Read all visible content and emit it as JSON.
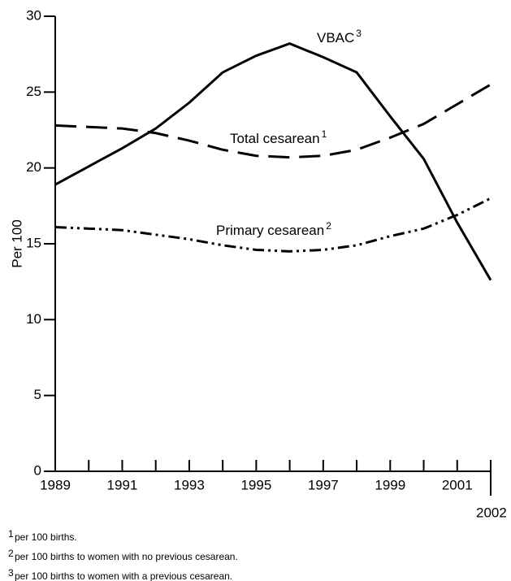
{
  "chart_data": {
    "type": "line",
    "y_label": "Per 100",
    "x": [
      1989,
      1990,
      1991,
      1992,
      1993,
      1994,
      1995,
      1996,
      1997,
      1998,
      1999,
      2000,
      2001,
      2002
    ],
    "xlim": [
      1989,
      2002
    ],
    "xticks": [
      1989,
      1991,
      1993,
      1995,
      1997,
      1999,
      2001,
      2002
    ],
    "xminorticks": [
      1990,
      1992,
      1994,
      1996,
      1998,
      2000
    ],
    "ylim": [
      0,
      30
    ],
    "yticks": [
      0,
      5,
      10,
      15,
      20,
      25,
      30
    ],
    "color": "#000000",
    "series": [
      {
        "name": "VBAC",
        "footnote": "3",
        "dash": "solid",
        "values": [
          18.9,
          20.1,
          21.3,
          22.6,
          24.3,
          26.3,
          27.4,
          28.2,
          27.3,
          26.3,
          23.4,
          20.6,
          16.4,
          12.6
        ]
      },
      {
        "name": "Total cesarean",
        "footnote": "1",
        "dash": "dashed",
        "values": [
          22.8,
          22.7,
          22.6,
          22.3,
          21.8,
          21.2,
          20.8,
          20.7,
          20.8,
          21.2,
          22.0,
          22.9,
          24.2,
          25.5
        ]
      },
      {
        "name": "Primary cesarean",
        "footnote": "2",
        "dash": "dashdotdot",
        "values": [
          16.1,
          16.0,
          15.9,
          15.6,
          15.3,
          14.9,
          14.6,
          14.5,
          14.6,
          14.9,
          15.5,
          16.0,
          16.9,
          18.0
        ]
      }
    ],
    "footnotes": [
      {
        "mark": "1",
        "text": "per 100 births."
      },
      {
        "mark": "2",
        "text": "per 100 births to women with no previous cesarean."
      },
      {
        "mark": "3",
        "text": "per 100 births to women with a previous cesarean."
      }
    ]
  }
}
